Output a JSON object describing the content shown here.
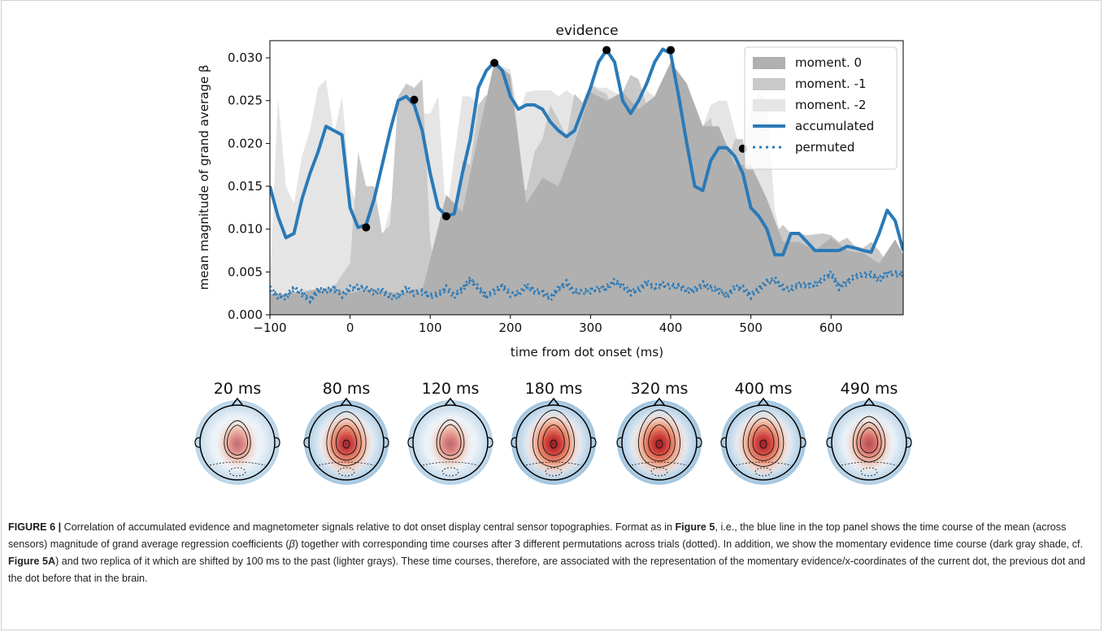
{
  "chart_data": {
    "type": "area",
    "title": "evidence",
    "xlabel": "time from dot onset (ms)",
    "ylabel": "mean magnitude of grand average β",
    "xlim": [
      -100,
      690
    ],
    "ylim": [
      0,
      0.032
    ],
    "xticks": [
      -100,
      0,
      100,
      200,
      300,
      400,
      500,
      600
    ],
    "xtick_labels": [
      "−100",
      "0",
      "100",
      "200",
      "300",
      "400",
      "500",
      "600"
    ],
    "yticks": [
      0,
      0.005,
      0.01,
      0.015,
      0.02,
      0.025,
      0.03
    ],
    "ytick_labels": [
      "0.000",
      "0.005",
      "0.010",
      "0.015",
      "0.020",
      "0.025",
      "0.030"
    ],
    "grid": false,
    "legend_position": "top-right",
    "series": [
      {
        "name": "moment.  0",
        "style": "fill",
        "color": "#b0b0b0",
        "x": [
          -100,
          -80,
          -60,
          -40,
          -20,
          0,
          20,
          40,
          60,
          80,
          90,
          100,
          120,
          140,
          160,
          180,
          200,
          220,
          240,
          260,
          280,
          300,
          320,
          340,
          360,
          380,
          400,
          420,
          440,
          460,
          480,
          500,
          520,
          540,
          560,
          580,
          600,
          620,
          640,
          660,
          680,
          690
        ],
        "values": [
          0.0025,
          0.0024,
          0.0026,
          0.003,
          0.003,
          0.0025,
          0.003,
          0.0028,
          0.0025,
          0.003,
          0.0028,
          0.0065,
          0.014,
          0.012,
          0.021,
          0.0295,
          0.028,
          0.013,
          0.016,
          0.015,
          0.02,
          0.026,
          0.025,
          0.026,
          0.024,
          0.0255,
          0.0295,
          0.027,
          0.022,
          0.022,
          0.0175,
          0.0175,
          0.0135,
          0.0085,
          0.0085,
          0.0075,
          0.009,
          0.0075,
          0.0072,
          0.006,
          0.0088,
          0.007
        ]
      },
      {
        "name": "moment. -1",
        "style": "fill",
        "color": "#c9c9c9",
        "x": [
          -100,
          -80,
          -60,
          -40,
          -20,
          0,
          10,
          20,
          30,
          40,
          50,
          60,
          70,
          80,
          90,
          100,
          110,
          120,
          130,
          140,
          150,
          160,
          170,
          180,
          190,
          200,
          210,
          220,
          230,
          240,
          250,
          260,
          270,
          280,
          290,
          300,
          310,
          320,
          330,
          340,
          350,
          360,
          370,
          380,
          390,
          400,
          410,
          420,
          430,
          440,
          450,
          460,
          470,
          480,
          490,
          500,
          510,
          520,
          530,
          540,
          550,
          560,
          570,
          580,
          590,
          600,
          610,
          620,
          630,
          640,
          650,
          660,
          670,
          680,
          690
        ],
        "values": [
          0.002,
          0.0025,
          0.0028,
          0.003,
          0.0033,
          0.006,
          0.019,
          0.015,
          0.015,
          0.0095,
          0.0105,
          0.0255,
          0.027,
          0.0265,
          0.0275,
          0.0085,
          0.004,
          0.0065,
          0.0085,
          0.018,
          0.0175,
          0.0245,
          0.0257,
          0.0218,
          0.0218,
          0.0205,
          0.015,
          0.0145,
          0.019,
          0.0205,
          0.0245,
          0.0228,
          0.0208,
          0.0258,
          0.0248,
          0.027,
          0.0262,
          0.0258,
          0.0235,
          0.026,
          0.028,
          0.0275,
          0.0245,
          0.0255,
          0.0275,
          0.025,
          0.0245,
          0.025,
          0.0245,
          0.022,
          0.023,
          0.018,
          0.0175,
          0.0205,
          0.0205,
          0.0145,
          0.0115,
          0.012,
          0.0095,
          0.0105,
          0.0095,
          0.0095,
          0.0093,
          0.0094,
          0.0095,
          0.0093,
          0.0085,
          0.009,
          0.008,
          0.0078,
          0.0085,
          0.0075,
          0.006,
          0.005,
          0.005
        ]
      },
      {
        "name": "moment. -2",
        "style": "fill",
        "color": "#e5e5e5",
        "x": [
          -100,
          -90,
          -80,
          -70,
          -60,
          -50,
          -40,
          -30,
          -20,
          -10,
          0,
          10,
          20,
          30,
          40,
          50,
          60,
          70,
          80,
          90,
          100,
          110,
          120,
          130,
          140,
          150,
          160,
          170,
          180,
          190,
          200,
          210,
          220,
          230,
          240,
          250,
          260,
          270,
          280,
          290,
          300,
          310,
          320,
          330,
          340,
          350,
          360,
          370,
          380,
          390,
          400,
          410,
          420,
          430,
          440,
          450,
          460,
          470,
          480,
          490,
          500,
          510,
          520,
          530,
          540,
          550,
          560,
          570,
          580,
          590,
          600,
          610,
          620,
          630,
          640,
          650,
          660,
          670,
          680,
          690
        ],
        "values": [
          0.0035,
          0.0255,
          0.015,
          0.013,
          0.0185,
          0.0215,
          0.0265,
          0.0275,
          0.021,
          0.0255,
          0.015,
          0.0125,
          0.0095,
          0.0085,
          0.009,
          0.0125,
          0.0175,
          0.0245,
          0.0255,
          0.0235,
          0.0235,
          0.0255,
          0.0112,
          0.0185,
          0.0255,
          0.0255,
          0.0245,
          0.0185,
          0.0245,
          0.029,
          0.0286,
          0.0235,
          0.026,
          0.0262,
          0.0262,
          0.0262,
          0.0255,
          0.0262,
          0.0255,
          0.0248,
          0.027,
          0.0265,
          0.0265,
          0.026,
          0.0255,
          0.0248,
          0.025,
          0.0262,
          0.0255,
          0.0235,
          0.0265,
          0.0245,
          0.0245,
          0.023,
          0.022,
          0.0245,
          0.025,
          0.025,
          0.0215,
          0.0185,
          0.024,
          0.026,
          0.025,
          0.012,
          0.0085,
          0.0065,
          0.0075,
          0.008,
          0.007,
          0.007,
          0.0065,
          0.006,
          0.0065,
          0.0065,
          0.005,
          0.0045,
          0.0045,
          0.0045,
          0.005,
          0.0035
        ]
      },
      {
        "name": "accumulated",
        "style": "line",
        "color": "#2a7ab8",
        "x": [
          -100,
          -90,
          -80,
          -70,
          -60,
          -50,
          -40,
          -30,
          -20,
          -10,
          0,
          10,
          20,
          30,
          40,
          50,
          60,
          70,
          80,
          90,
          100,
          110,
          120,
          130,
          140,
          150,
          160,
          170,
          180,
          190,
          200,
          210,
          220,
          230,
          240,
          250,
          260,
          270,
          280,
          290,
          300,
          310,
          320,
          330,
          340,
          350,
          360,
          370,
          380,
          390,
          400,
          410,
          420,
          430,
          440,
          450,
          460,
          470,
          480,
          490,
          500,
          510,
          520,
          530,
          540,
          550,
          560,
          570,
          580,
          590,
          600,
          610,
          620,
          630,
          640,
          650,
          660,
          670,
          680,
          690
        ],
        "values": [
          0.015,
          0.0115,
          0.009,
          0.0095,
          0.0135,
          0.0165,
          0.019,
          0.022,
          0.0215,
          0.021,
          0.0125,
          0.0102,
          0.0105,
          0.0135,
          0.0175,
          0.0215,
          0.025,
          0.0255,
          0.0245,
          0.0215,
          0.0165,
          0.0125,
          0.0115,
          0.0118,
          0.0165,
          0.0205,
          0.0265,
          0.0285,
          0.0295,
          0.0285,
          0.0255,
          0.024,
          0.0245,
          0.0245,
          0.024,
          0.0225,
          0.0215,
          0.0208,
          0.0215,
          0.024,
          0.0265,
          0.0295,
          0.0309,
          0.0295,
          0.025,
          0.0235,
          0.025,
          0.027,
          0.0295,
          0.031,
          0.0305,
          0.0255,
          0.02,
          0.015,
          0.0145,
          0.018,
          0.0195,
          0.0195,
          0.0185,
          0.0165,
          0.0125,
          0.0115,
          0.01,
          0.007,
          0.007,
          0.0095,
          0.0095,
          0.0085,
          0.0075,
          0.0075,
          0.0075,
          0.0075,
          0.008,
          0.0078,
          0.0075,
          0.0073,
          0.0095,
          0.0122,
          0.011,
          0.0075
        ]
      },
      {
        "name": "permuted",
        "style": "dotted",
        "color": "#2a7ab8",
        "x": [
          -100,
          -90,
          -80,
          -70,
          -60,
          -50,
          -40,
          -30,
          -20,
          -10,
          0,
          10,
          20,
          30,
          40,
          50,
          60,
          70,
          80,
          90,
          100,
          110,
          120,
          130,
          140,
          150,
          160,
          170,
          180,
          190,
          200,
          210,
          220,
          230,
          240,
          250,
          260,
          270,
          280,
          290,
          300,
          310,
          320,
          330,
          340,
          350,
          360,
          370,
          380,
          390,
          400,
          410,
          420,
          430,
          440,
          450,
          460,
          470,
          480,
          490,
          500,
          510,
          520,
          530,
          540,
          550,
          560,
          570,
          580,
          590,
          600,
          610,
          620,
          630,
          640,
          650,
          660,
          670,
          680,
          690
        ],
        "values": [
          0.0028,
          0.0025,
          0.0022,
          0.0028,
          0.0025,
          0.002,
          0.0028,
          0.0025,
          0.0032,
          0.0026,
          0.0028,
          0.003,
          0.0033,
          0.0028,
          0.0025,
          0.002,
          0.0025,
          0.003,
          0.0022,
          0.0028,
          0.0025,
          0.0022,
          0.0028,
          0.0025,
          0.0032,
          0.0038,
          0.003,
          0.0025,
          0.0028,
          0.003,
          0.0025,
          0.0028,
          0.0032,
          0.0025,
          0.0028,
          0.0022,
          0.0028,
          0.0035,
          0.003,
          0.0028,
          0.0025,
          0.003,
          0.0035,
          0.0038,
          0.003,
          0.0028,
          0.0032,
          0.0035,
          0.003,
          0.0038,
          0.0035,
          0.003,
          0.0028,
          0.0032,
          0.0035,
          0.0028,
          0.003,
          0.0025,
          0.003,
          0.0028,
          0.0025,
          0.0032,
          0.0035,
          0.004,
          0.0035,
          0.003,
          0.0032,
          0.0035,
          0.0038,
          0.004,
          0.0045,
          0.0035,
          0.004,
          0.0042,
          0.0045,
          0.005,
          0.0042,
          0.0045,
          0.0048,
          0.005
        ]
      }
    ],
    "markers": [
      {
        "x": 20,
        "y": 0.0102
      },
      {
        "x": 80,
        "y": 0.0251
      },
      {
        "x": 120,
        "y": 0.0115
      },
      {
        "x": 180,
        "y": 0.0294
      },
      {
        "x": 320,
        "y": 0.0309
      },
      {
        "x": 400,
        "y": 0.0309
      },
      {
        "x": 490,
        "y": 0.0194
      }
    ],
    "topographies": [
      {
        "label": "20 ms",
        "intensity": 0.35
      },
      {
        "label": "80 ms",
        "intensity": 0.9
      },
      {
        "label": "120 ms",
        "intensity": 0.4
      },
      {
        "label": "180 ms",
        "intensity": 1.0
      },
      {
        "label": "320 ms",
        "intensity": 1.0
      },
      {
        "label": "400 ms",
        "intensity": 0.95
      },
      {
        "label": "490 ms",
        "intensity": 0.6
      }
    ]
  },
  "caption": {
    "lead": "FIGURE 6 |",
    "p1": " Correlation of accumulated evidence and magnetometer signals relative to dot onset display central sensor topographies. Format as in ",
    "ref1": "Figure 5",
    "p2": ", i.e., the blue line in the top panel shows the time course of the mean (across sensors) magnitude of grand average regression coefficients (",
    "beta1": "β",
    "p3": ") together with corresponding time courses after 3 different permutations across trials (dotted). In addition, we show the momentary evidence time course (dark gray shade, cf. ",
    "ref2": "Figure 5A",
    "p4": ") and two replica of it which are shifted by 100 ms to the past (lighter grays). These time courses, therefore, are associated with the representation of the momentary evidence/x-coordinates of the current dot, the previous dot and the dot before that in the brain."
  }
}
